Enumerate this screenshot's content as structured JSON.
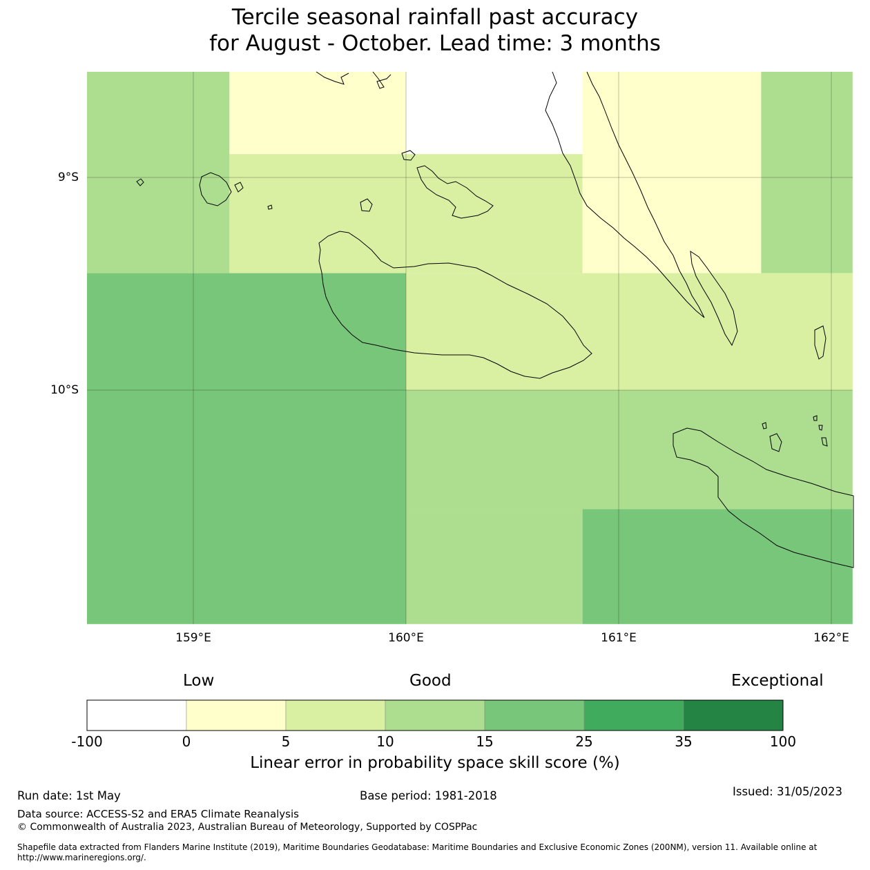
{
  "title": {
    "line1": "Tercile seasonal rainfall past accuracy",
    "line2": "for August - October. Lead time: 3 months"
  },
  "map": {
    "lat_labels": [
      "9°S",
      "10°S"
    ],
    "lon_labels": [
      "159°E",
      "160°E",
      "161°E",
      "162°E"
    ],
    "lon_range": [
      158.5,
      162.1
    ],
    "lat_range": [
      -11.1,
      -8.5
    ],
    "grid_cells": [
      {
        "lon": [
          158.5,
          159.17
        ],
        "lat": [
          -8.5,
          -9.45
        ],
        "value_bin": "10-15"
      },
      {
        "lon": [
          159.17,
          160.0
        ],
        "lat": [
          -8.5,
          -8.89
        ],
        "value_bin": "0-5"
      },
      {
        "lon": [
          159.17,
          160.0
        ],
        "lat": [
          -8.89,
          -9.45
        ],
        "value_bin": "5-10"
      },
      {
        "lon": [
          160.0,
          160.83
        ],
        "lat": [
          -8.5,
          -8.89
        ],
        "value_bin": "-100-0"
      },
      {
        "lon": [
          160.0,
          160.83
        ],
        "lat": [
          -8.89,
          -9.45
        ],
        "value_bin": "5-10"
      },
      {
        "lon": [
          160.83,
          161.67
        ],
        "lat": [
          -8.5,
          -9.45
        ],
        "value_bin": "0-5"
      },
      {
        "lon": [
          161.67,
          162.1
        ],
        "lat": [
          -8.5,
          -9.45
        ],
        "value_bin": "10-15"
      },
      {
        "lon": [
          158.5,
          160.0
        ],
        "lat": [
          -9.45,
          -11.1
        ],
        "value_bin": "15-25"
      },
      {
        "lon": [
          160.0,
          162.1
        ],
        "lat": [
          -9.45,
          -10.0
        ],
        "value_bin": "5-10"
      },
      {
        "lon": [
          160.0,
          162.1
        ],
        "lat": [
          -10.0,
          -10.56
        ],
        "value_bin": "10-15"
      },
      {
        "lon": [
          160.0,
          160.83
        ],
        "lat": [
          -10.56,
          -11.1
        ],
        "value_bin": "10-15"
      },
      {
        "lon": [
          160.83,
          162.1
        ],
        "lat": [
          -10.56,
          -11.1
        ],
        "value_bin": "15-25"
      }
    ]
  },
  "colorbar": {
    "category_labels": [
      "Low",
      "Good",
      "Exceptional"
    ],
    "ticks": [
      "-100",
      "0",
      "5",
      "10",
      "15",
      "25",
      "35",
      "100"
    ],
    "colors": [
      "#ffffff",
      "#ffffcc",
      "#d9f0a3",
      "#addd8e",
      "#78c679",
      "#41ab5d",
      "#238443"
    ],
    "label": "Linear error in probability space skill score (%)"
  },
  "footer": {
    "run_date": "Run date: 1st May",
    "base_period": "Base period: 1981-2018",
    "issued": "Issued: 31/05/2023",
    "data_source": "Data source: ACCESS-S2 and ERA5 Climate Reanalysis",
    "copyright": "© Commonwealth of Australia 2023, Australian Bureau of Meteorology, Supported by COSPPac",
    "shapefile_line1": "Shapefile data extracted from Flanders Marine Institute (2019), Maritime Boundaries Geodatabase: Maritime Boundaries and Exclusive Economic Zones (200NM), version 11. Available online at",
    "shapefile_line2": "http://www.marineregions.org/."
  }
}
